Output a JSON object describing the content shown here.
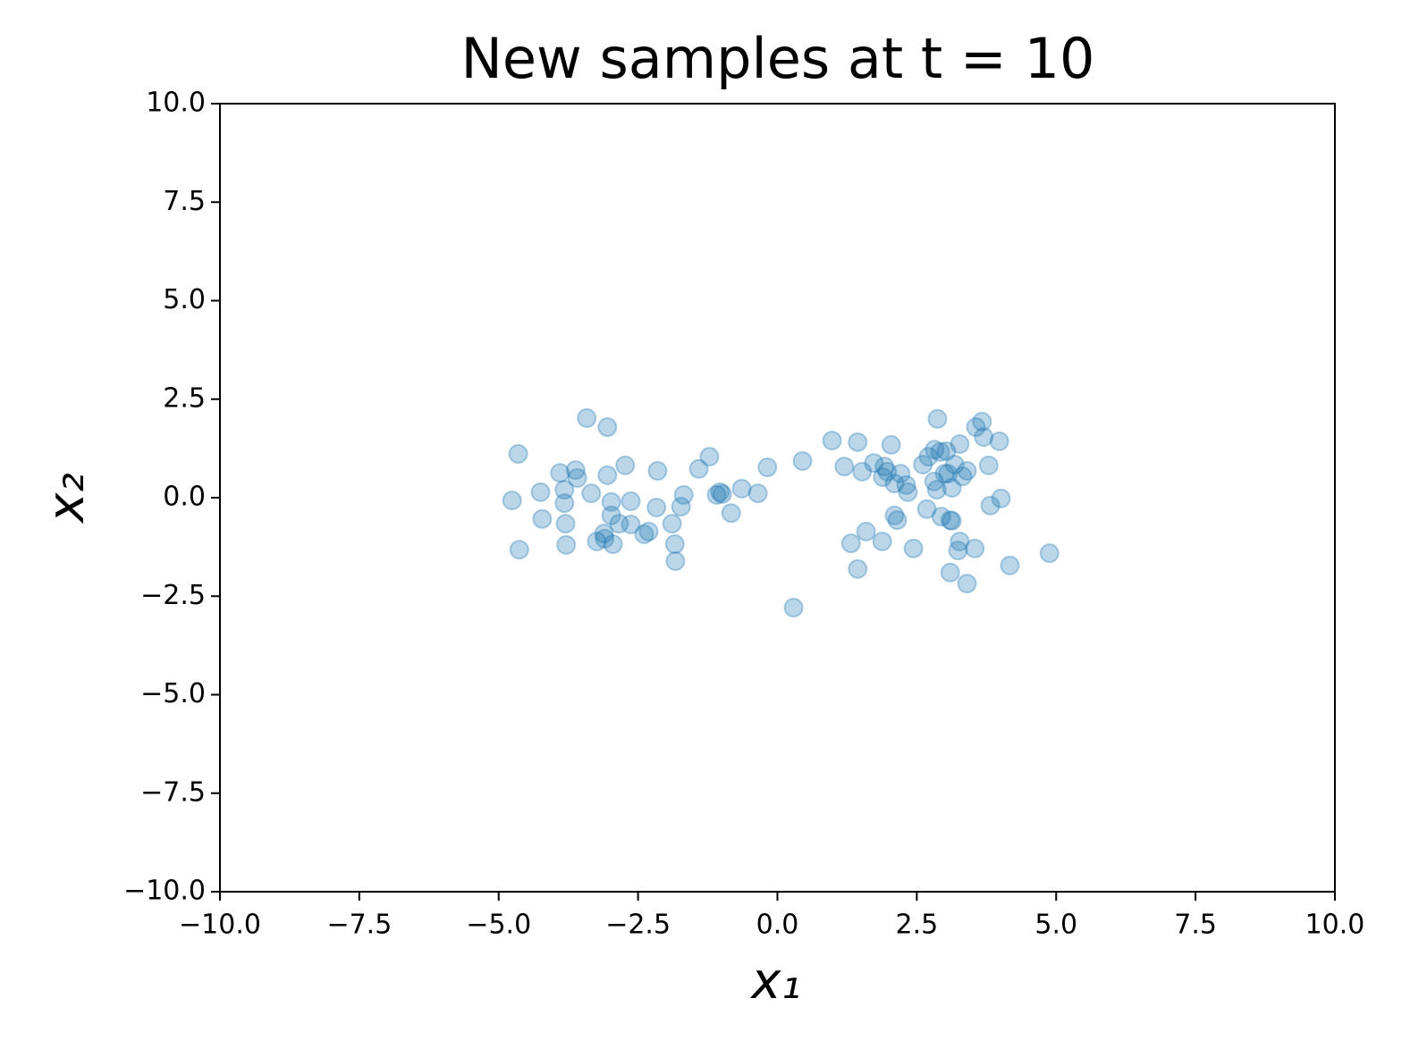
{
  "chart_data": {
    "type": "scatter",
    "title": "New samples at t = 10",
    "xlabel": "x₁",
    "ylabel": "x₂",
    "color": "#1f77b4",
    "x": [
      -4.76,
      -4.65,
      -4.63,
      -4.25,
      -4.22,
      -3.9,
      -3.82,
      -3.82,
      -3.8,
      -3.79,
      -3.62,
      -3.59,
      -3.42,
      -3.34,
      -3.24,
      -3.11,
      -3.1,
      -3.05,
      -3.05,
      -2.98,
      -2.98,
      -2.95,
      -2.84,
      -2.73,
      -2.63,
      -2.63,
      -2.39,
      -2.31,
      -2.17,
      -2.15,
      -1.89,
      -1.84,
      -1.83,
      -1.73,
      -1.68,
      -1.41,
      -1.22,
      -1.09,
      -1.03,
      -0.99,
      -0.83,
      -0.64,
      -0.35,
      -0.18,
      0.29,
      0.45,
      0.98,
      1.2,
      1.32,
      1.44,
      1.44,
      1.52,
      1.59,
      1.73,
      1.88,
      1.89,
      1.92,
      1.97,
      2.04,
      2.1,
      2.1,
      2.15,
      2.21,
      2.31,
      2.34,
      2.44,
      2.61,
      2.68,
      2.71,
      2.81,
      2.82,
      2.86,
      2.87,
      2.92,
      2.94,
      3.0,
      3.03,
      3.06,
      3.1,
      3.1,
      3.13,
      3.13,
      3.18,
      3.24,
      3.27,
      3.27,
      3.32,
      3.4,
      3.4,
      3.54,
      3.56,
      3.67,
      3.7,
      3.79,
      3.82,
      3.98,
      4.01,
      4.17,
      4.88
    ],
    "values": [
      -0.07,
      1.11,
      -1.32,
      0.14,
      -0.54,
      0.63,
      0.2,
      -0.14,
      -0.66,
      -1.2,
      0.7,
      0.5,
      2.02,
      0.11,
      -1.11,
      -0.91,
      -1.04,
      1.79,
      0.57,
      -0.11,
      -0.45,
      -1.18,
      -0.66,
      0.82,
      -0.09,
      -0.68,
      -0.93,
      -0.86,
      -0.25,
      0.68,
      -0.66,
      -1.18,
      -1.61,
      -0.23,
      0.07,
      0.73,
      1.04,
      0.07,
      0.14,
      0.09,
      -0.39,
      0.23,
      0.11,
      0.77,
      -2.79,
      0.93,
      1.45,
      0.79,
      -1.16,
      1.41,
      -1.81,
      0.66,
      -0.86,
      0.88,
      -1.11,
      0.52,
      0.79,
      0.66,
      1.34,
      0.36,
      -0.45,
      -0.57,
      0.61,
      0.32,
      0.14,
      -1.29,
      0.84,
      -0.29,
      1.04,
      0.41,
      1.22,
      0.2,
      2.0,
      1.16,
      -0.48,
      0.61,
      1.18,
      0.61,
      -0.57,
      -1.9,
      -0.59,
      0.25,
      0.84,
      -1.34,
      -1.11,
      1.36,
      0.54,
      0.68,
      -2.18,
      -1.29,
      1.79,
      1.93,
      1.54,
      0.82,
      -0.2,
      1.43,
      -0.02,
      -1.72,
      -1.41
    ],
    "xlim": [
      -10,
      10
    ],
    "ylim": [
      -10,
      10
    ],
    "xticks": [
      {
        "value": -10,
        "label": "−10.0"
      },
      {
        "value": -7.5,
        "label": "−7.5"
      },
      {
        "value": -5,
        "label": "−5.0"
      },
      {
        "value": -2.5,
        "label": "−2.5"
      },
      {
        "value": 0,
        "label": "0.0"
      },
      {
        "value": 2.5,
        "label": "2.5"
      },
      {
        "value": 5,
        "label": "5.0"
      },
      {
        "value": 7.5,
        "label": "7.5"
      },
      {
        "value": 10,
        "label": "10.0"
      }
    ],
    "yticks": [
      {
        "value": -10,
        "label": "−10.0"
      },
      {
        "value": -7.5,
        "label": "−7.5"
      },
      {
        "value": -5,
        "label": "−5.0"
      },
      {
        "value": -2.5,
        "label": "−2.5"
      },
      {
        "value": 0,
        "label": "0.0"
      },
      {
        "value": 2.5,
        "label": "2.5"
      },
      {
        "value": 5,
        "label": "5.0"
      },
      {
        "value": 7.5,
        "label": "7.5"
      },
      {
        "value": 10,
        "label": "10.0"
      }
    ]
  }
}
